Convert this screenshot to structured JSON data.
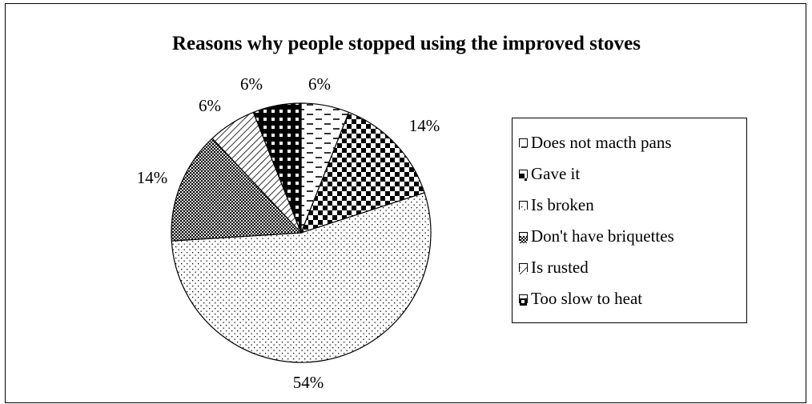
{
  "chart_data": {
    "type": "pie",
    "title": "Reasons why people stopped using the improved stoves",
    "categories": [
      "Does not macth pans",
      "Gave it",
      "Is broken",
      "Don't have briquettes",
      "Is rusted",
      "Too slow to heat"
    ],
    "values": [
      6,
      14,
      54,
      14,
      6,
      6
    ],
    "data_labels": [
      "6%",
      "14%",
      "54%",
      "14%",
      "6%",
      "6%"
    ],
    "legend_position": "right",
    "start_angle": "12 o'clock, clockwise"
  }
}
